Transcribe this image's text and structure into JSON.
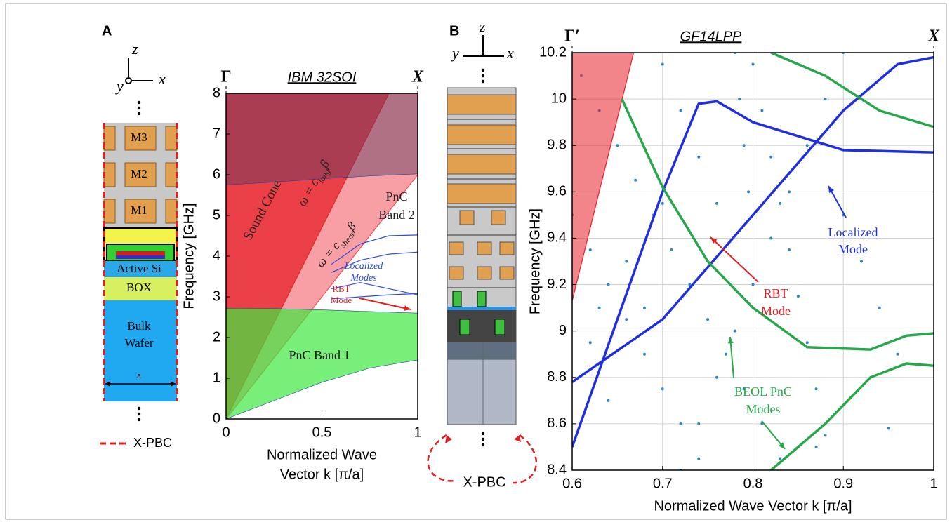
{
  "panel_labels": [
    "A",
    "B"
  ],
  "diagram_a": {
    "axes": [
      "z",
      "y",
      "x"
    ],
    "layers": [
      [
        "M3"
      ],
      [
        "M2"
      ],
      [
        "M1"
      ],
      [
        "Active Si"
      ],
      [
        "BOX"
      ],
      [
        "Bulk",
        "Wafer"
      ],
      [
        "a"
      ]
    ],
    "legend": "X-PBC"
  },
  "diagram_b": {
    "axes": [
      "z",
      "y",
      "x"
    ],
    "label": "X-PBC"
  },
  "chart_data": [
    {
      "type": "band",
      "title": "IBM 32SOI",
      "corner_labels": [
        "Γ",
        "X"
      ],
      "xlabel": [
        "Normalized Wave",
        "Vector k [π/a]"
      ],
      "ylabel": "Frequency [GHz]",
      "xlim": [
        0,
        1
      ],
      "ylim": [
        0,
        8
      ],
      "xticks": [
        0,
        0.5,
        1
      ],
      "yticks": [
        0,
        1,
        2,
        3,
        4,
        5,
        6,
        7,
        8
      ],
      "grid": false,
      "series": [
        {
          "kind": "cone",
          "color": "#f0505a",
          "opacity": 0.55,
          "x": [
            0,
            1
          ],
          "y": [
            0,
            6
          ]
        },
        {
          "kind": "cone",
          "color": "#e8202a",
          "opacity": 0.75,
          "x": [
            0,
            0.85
          ],
          "y": [
            0,
            8
          ]
        },
        {
          "kind": "band",
          "color": "#3ee83e",
          "opacity": 0.7,
          "x": [
            0,
            0.25,
            0.5,
            0.75,
            1
          ],
          "lower": [
            0,
            0.45,
            0.9,
            1.25,
            1.45
          ],
          "upper": [
            2.72,
            2.71,
            2.68,
            2.64,
            2.6
          ]
        },
        {
          "kind": "band",
          "color": "#5a3a60",
          "opacity": 0.45,
          "x": [
            0,
            0.25,
            0.5,
            0.75,
            1
          ],
          "lower": [
            5.75,
            5.82,
            5.9,
            5.97,
            6.02
          ],
          "upper": [
            8,
            8,
            8,
            8,
            8
          ]
        },
        {
          "kind": "line",
          "color": "#2a4de0",
          "x": [
            0.55,
            0.7,
            0.85,
            1
          ],
          "y": [
            3.8,
            4.3,
            4.5,
            4.52
          ]
        },
        {
          "kind": "line",
          "color": "#2a4de0",
          "x": [
            0.55,
            0.7,
            0.85,
            1
          ],
          "y": [
            3.6,
            3.9,
            4.05,
            4.1
          ]
        },
        {
          "kind": "line",
          "color": "#2a4de0",
          "x": [
            0.55,
            0.7,
            0.85,
            1
          ],
          "y": [
            3.2,
            3.35,
            3.2,
            3.05
          ]
        },
        {
          "kind": "line",
          "color": "#2a4de0",
          "x": [
            0.55,
            0.7,
            0.85,
            1
          ],
          "y": [
            2.95,
            3.0,
            3.05,
            3.08
          ]
        }
      ],
      "annotations": [
        [
          "Sound Cone"
        ],
        [
          "PnC",
          "Band 2"
        ],
        [
          "PnC Band 1"
        ],
        [
          "Localized",
          "Modes"
        ],
        [
          "RBT",
          "Mode"
        ]
      ],
      "cone_labels": [
        [
          "ω = c",
          "long",
          "β"
        ],
        [
          "ω = c",
          "shear",
          "β"
        ]
      ]
    },
    {
      "type": "band",
      "title": "GF14LPP",
      "corner_labels": [
        "Γ′",
        "X"
      ],
      "xlabel": [
        "Normalized Wave Vector k [π/a]"
      ],
      "ylabel": "Frequency [GHz]",
      "xlim": [
        0.6,
        1
      ],
      "ylim": [
        8.4,
        10.2
      ],
      "xticks": [
        0.6,
        0.7,
        0.8,
        0.9,
        1
      ],
      "yticks": [
        8.4,
        8.6,
        8.8,
        9,
        9.2,
        9.4,
        9.6,
        9.8,
        10,
        10.2
      ],
      "grid": true,
      "series": [
        {
          "kind": "cone",
          "color": "#e8202a",
          "opacity": 0.55,
          "x": [
            0.6,
            0.668
          ],
          "y": [
            9.13,
            10.2
          ]
        },
        {
          "kind": "scatter",
          "color": "#2e86c8",
          "x": [
            0.61,
            0.63,
            0.65,
            0.67,
            0.69,
            0.71,
            0.73,
            0.75,
            0.77,
            0.79,
            0.81,
            0.83,
            0.6,
            0.62,
            0.64,
            0.66,
            0.68,
            0.7,
            0.72,
            0.74,
            0.72,
            0.74,
            0.76,
            0.78,
            0.8,
            0.82,
            0.84,
            0.86,
            0.88,
            0.9,
            0.8,
            0.81,
            0.82,
            0.83,
            0.84,
            0.85,
            0.86,
            0.87,
            0.88,
            0.78,
            0.785,
            0.79,
            0.795,
            0.66,
            0.68,
            0.7,
            0.7,
            0.72,
            0.74,
            0.76,
            0.92,
            0.94,
            0.96,
            0.9,
            0.95,
            0.87,
            0.62,
            0.64,
            0.63
          ],
          "y": [
            10.1,
            9.95,
            9.8,
            9.65,
            9.5,
            9.35,
            9.2,
            9.05,
            8.9,
            8.75,
            8.6,
            8.45,
            9.5,
            9.35,
            9.2,
            9.05,
            8.9,
            8.75,
            8.6,
            8.45,
            8.4,
            8.6,
            8.8,
            9.0,
            9.2,
            9.4,
            9.6,
            9.8,
            10.0,
            10.2,
            10.15,
            9.95,
            9.75,
            9.55,
            9.35,
            9.15,
            8.95,
            8.75,
            8.55,
            10.2,
            10.0,
            9.8,
            9.6,
            9.3,
            9.1,
            9.55,
            10.15,
            9.95,
            9.75,
            9.55,
            9.3,
            9.1,
            8.9,
            9.5,
            8.58,
            8.5,
            8.95,
            8.7,
            9.1
          ]
        },
        {
          "kind": "line",
          "color": "#1f2fe0",
          "x": [
            0.6,
            0.65,
            0.7,
            0.74,
            0.76,
            0.8,
            0.9,
            1
          ],
          "y": [
            8.5,
            9.05,
            9.6,
            9.98,
            9.99,
            9.9,
            9.78,
            9.77
          ]
        },
        {
          "kind": "line",
          "color": "#1f2fe0",
          "x": [
            0.6,
            0.7,
            0.8,
            0.9,
            0.96,
            1
          ],
          "y": [
            8.78,
            9.05,
            9.5,
            9.95,
            10.15,
            10.18
          ]
        },
        {
          "kind": "line",
          "color": "#26a84a",
          "x": [
            0.655,
            0.7,
            0.75,
            0.8,
            0.86,
            0.93,
            0.97,
            1
          ],
          "y": [
            10.0,
            9.62,
            9.3,
            9.1,
            8.93,
            8.92,
            8.98,
            8.99
          ]
        },
        {
          "kind": "line",
          "color": "#26a84a",
          "x": [
            0.82,
            0.88,
            0.94,
            1
          ],
          "y": [
            10.2,
            10.1,
            9.95,
            9.88
          ]
        },
        {
          "kind": "line",
          "color": "#26a84a",
          "x": [
            0.82,
            0.88,
            0.93,
            0.97,
            1
          ],
          "y": [
            8.4,
            8.6,
            8.8,
            8.86,
            8.85
          ]
        }
      ],
      "annotations": [
        [
          "Localized",
          "Mode"
        ],
        [
          "RBT",
          "Mode"
        ],
        [
          "BEOL PnC",
          "Modes"
        ]
      ]
    }
  ]
}
